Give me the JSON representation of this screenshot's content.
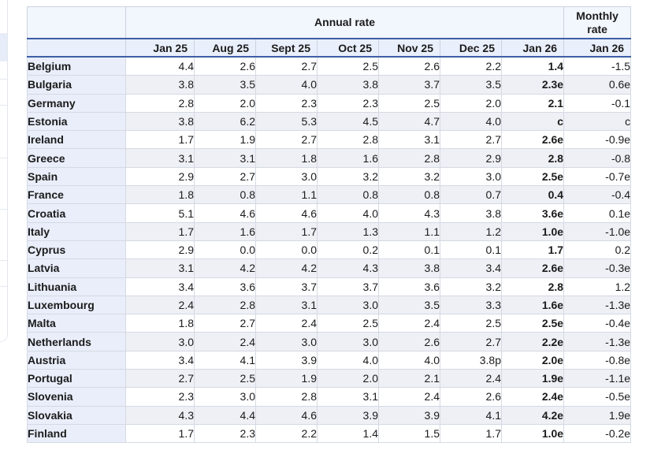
{
  "chart_data": {
    "type": "table",
    "title": "",
    "group_headers": [
      {
        "label": "Annual rate",
        "colspan": 7
      },
      {
        "label": "Monthly rate",
        "colspan": 1
      }
    ],
    "columns": [
      "Jan 25",
      "Aug 25",
      "Sept 25",
      "Oct 25",
      "Nov 25",
      "Dec 25",
      "Jan 26",
      "Jan 26"
    ],
    "bold_column_index": 6,
    "rows": [
      {
        "country": "Belgium",
        "values": [
          "4.4",
          "2.6",
          "2.7",
          "2.5",
          "2.6",
          "2.2",
          "1.4",
          "-1.5"
        ]
      },
      {
        "country": "Bulgaria",
        "values": [
          "3.8",
          "3.5",
          "4.0",
          "3.8",
          "3.7",
          "3.5",
          "2.3e",
          "0.6e"
        ]
      },
      {
        "country": "Germany",
        "values": [
          "2.8",
          "2.0",
          "2.3",
          "2.3",
          "2.5",
          "2.0",
          "2.1",
          "-0.1"
        ]
      },
      {
        "country": "Estonia",
        "values": [
          "3.8",
          "6.2",
          "5.3",
          "4.5",
          "4.7",
          "4.0",
          "c",
          "c"
        ]
      },
      {
        "country": "Ireland",
        "values": [
          "1.7",
          "1.9",
          "2.7",
          "2.8",
          "3.1",
          "2.7",
          "2.6e",
          "-0.9e"
        ]
      },
      {
        "country": "Greece",
        "values": [
          "3.1",
          "3.1",
          "1.8",
          "1.6",
          "2.8",
          "2.9",
          "2.8",
          "-0.8"
        ]
      },
      {
        "country": "Spain",
        "values": [
          "2.9",
          "2.7",
          "3.0",
          "3.2",
          "3.2",
          "3.0",
          "2.5e",
          "-0.7e"
        ]
      },
      {
        "country": "France",
        "values": [
          "1.8",
          "0.8",
          "1.1",
          "0.8",
          "0.8",
          "0.7",
          "0.4",
          "-0.4"
        ]
      },
      {
        "country": "Croatia",
        "values": [
          "5.1",
          "4.6",
          "4.6",
          "4.0",
          "4.3",
          "3.8",
          "3.6e",
          "0.1e"
        ]
      },
      {
        "country": "Italy",
        "values": [
          "1.7",
          "1.6",
          "1.7",
          "1.3",
          "1.1",
          "1.2",
          "1.0e",
          "-1.0e"
        ]
      },
      {
        "country": "Cyprus",
        "values": [
          "2.9",
          "0.0",
          "0.0",
          "0.2",
          "0.1",
          "0.1",
          "1.7",
          "0.2"
        ]
      },
      {
        "country": "Latvia",
        "values": [
          "3.1",
          "4.2",
          "4.2",
          "4.3",
          "3.8",
          "3.4",
          "2.6e",
          "-0.3e"
        ]
      },
      {
        "country": "Lithuania",
        "values": [
          "3.4",
          "3.6",
          "3.7",
          "3.7",
          "3.6",
          "3.2",
          "2.8",
          "1.2"
        ]
      },
      {
        "country": "Luxembourg",
        "values": [
          "2.4",
          "2.8",
          "3.1",
          "3.0",
          "3.5",
          "3.3",
          "1.6e",
          "-1.3e"
        ]
      },
      {
        "country": "Malta",
        "values": [
          "1.8",
          "2.7",
          "2.4",
          "2.5",
          "2.4",
          "2.5",
          "2.5e",
          "-0.4e"
        ]
      },
      {
        "country": "Netherlands",
        "values": [
          "3.0",
          "2.4",
          "3.0",
          "3.0",
          "2.6",
          "2.7",
          "2.2e",
          "-1.3e"
        ]
      },
      {
        "country": "Austria",
        "values": [
          "3.4",
          "4.1",
          "3.9",
          "4.0",
          "4.0",
          "3.8p",
          "2.0e",
          "-0.8e"
        ]
      },
      {
        "country": "Portugal",
        "values": [
          "2.7",
          "2.5",
          "1.9",
          "2.0",
          "2.1",
          "2.4",
          "1.9e",
          "-1.1e"
        ]
      },
      {
        "country": "Slovenia",
        "values": [
          "2.3",
          "3.0",
          "2.8",
          "3.1",
          "2.4",
          "2.6",
          "2.4e",
          "-0.5e"
        ]
      },
      {
        "country": "Slovakia",
        "values": [
          "4.3",
          "4.4",
          "4.6",
          "3.9",
          "3.9",
          "4.1",
          "4.2e",
          "1.9e"
        ]
      },
      {
        "country": "Finland",
        "values": [
          "1.7",
          "2.3",
          "2.2",
          "1.4",
          "1.5",
          "1.7",
          "1.0e",
          "-0.2e"
        ]
      }
    ],
    "layout": {
      "grid": "on",
      "stripe_pattern": "even rows shaded",
      "last_annual_column_bold": true
    }
  },
  "colors": {
    "rule_blue": "#3e5fa6",
    "group_header_bg": "#f2f6fd",
    "month_header_bg": "#e9effb",
    "country_cell_bg": "#e9eefa",
    "stripe_bg": "#eef0f5",
    "cell_border": "#ccd3df",
    "text": "#1b1b1b"
  }
}
